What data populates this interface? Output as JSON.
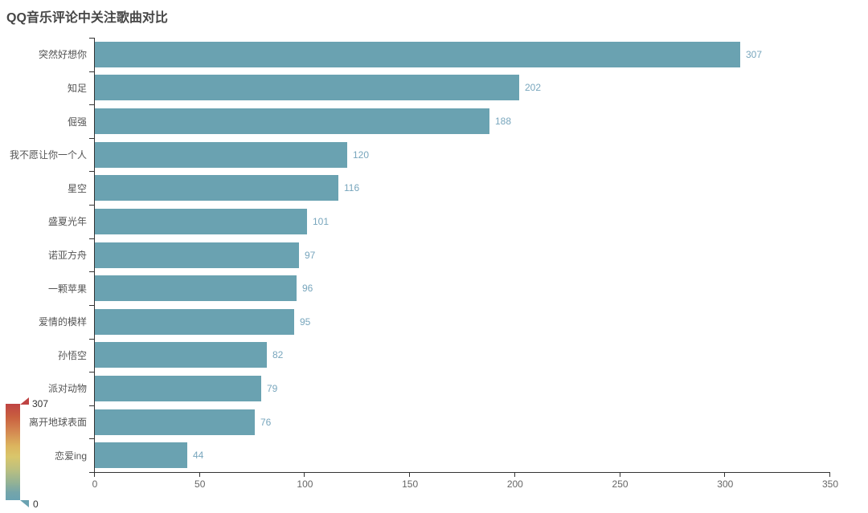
{
  "title": "QQ音乐评论中关注歌曲对比",
  "colors": {
    "bar": "#6aa2b1",
    "value_label": "#78a6bd",
    "axis_line": "#333333",
    "axis_label": "#666666",
    "category_label": "#555555",
    "title_color": "#464646",
    "visualmap_max": "#bf4343",
    "visualmap_mid": "#dcb55e",
    "visualmap_min": "#6aa2b1"
  },
  "chart_data": {
    "type": "bar",
    "orientation": "horizontal",
    "title": "QQ音乐评论中关注歌曲对比",
    "categories": [
      "突然好想你",
      "知足",
      "倔强",
      "我不愿让你一个人",
      "星空",
      "盛夏光年",
      "诺亚方舟",
      "一颗苹果",
      "爱情的模样",
      "孙悟空",
      "派对动物",
      "离开地球表面",
      "恋爱ing"
    ],
    "values": [
      307,
      202,
      188,
      120,
      116,
      101,
      97,
      96,
      95,
      82,
      79,
      76,
      44
    ],
    "xlabel": "",
    "ylabel": "",
    "xlim": [
      0,
      350
    ],
    "x_ticks": [
      0,
      50,
      100,
      150,
      200,
      250,
      300,
      350
    ],
    "grid": false,
    "legend_position": "none",
    "value_labels_shown": true,
    "visualmap": {
      "position": "bottom-left",
      "max_label": "307",
      "min_label": "0"
    }
  }
}
